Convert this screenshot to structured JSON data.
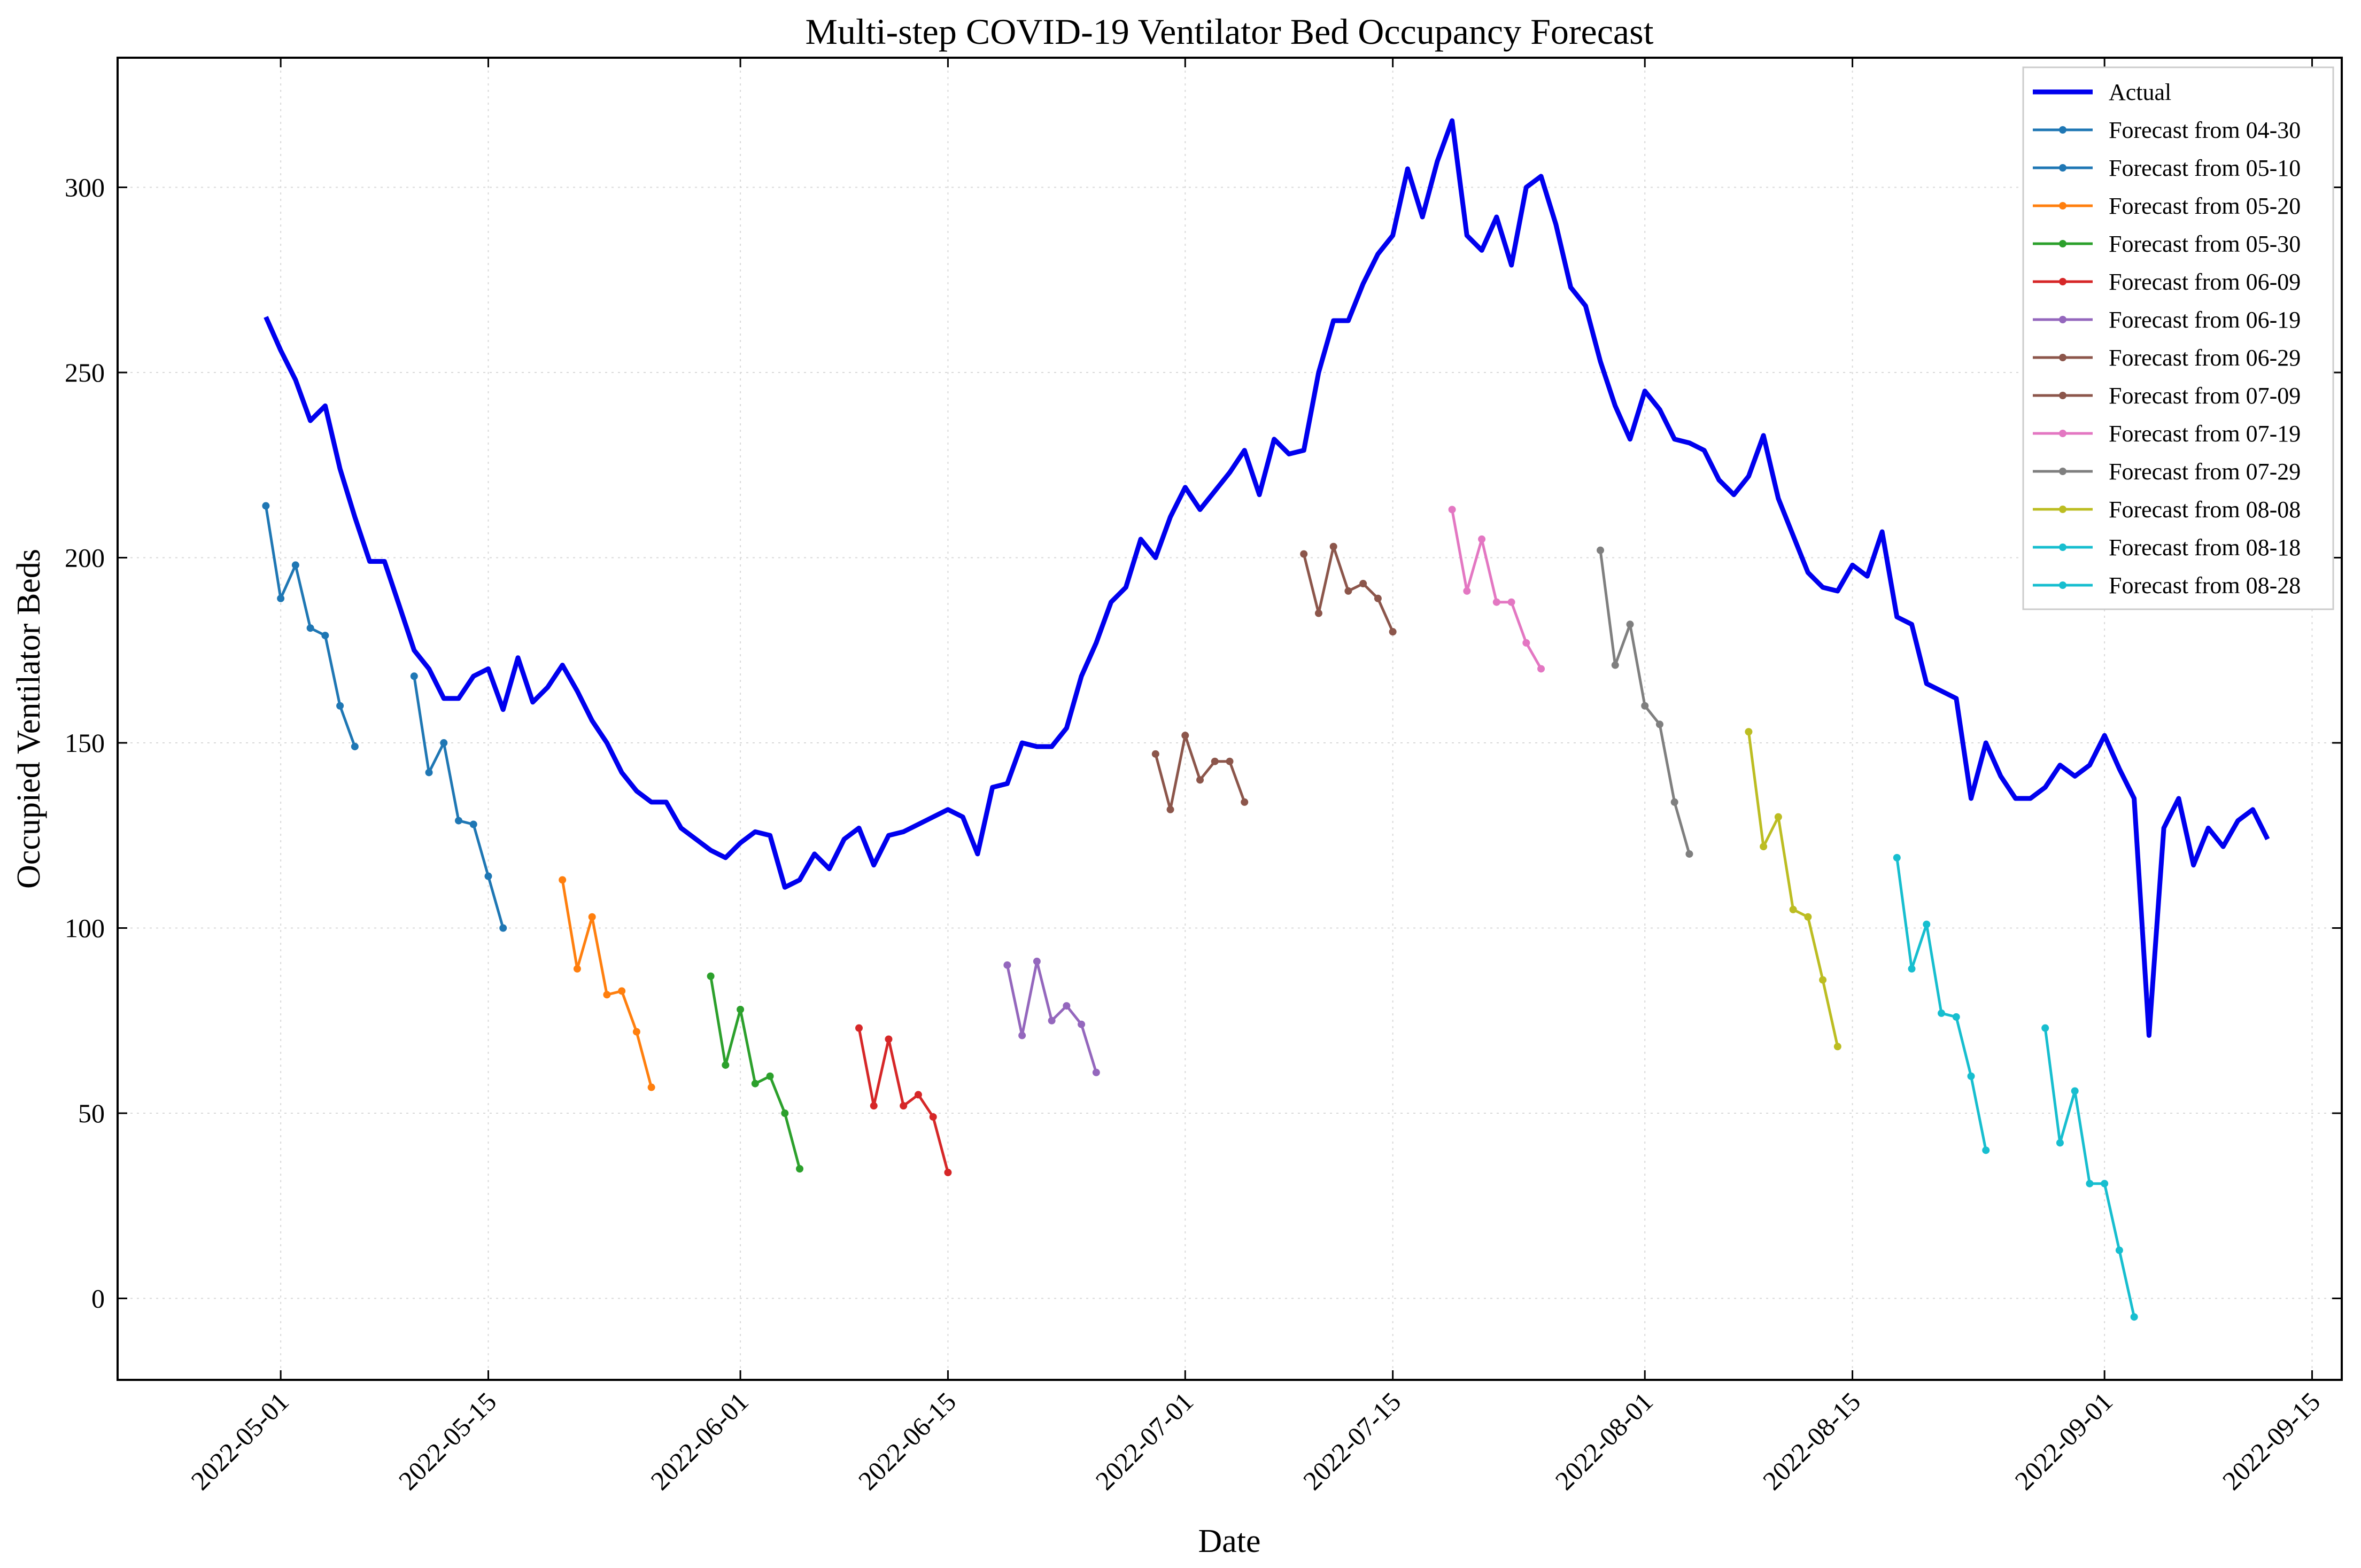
{
  "chart_data": {
    "type": "line",
    "title": "Multi-step COVID-19 Ventilator Bed Occupancy Forecast",
    "xlabel": "Date",
    "ylabel": "Occupied Ventilator Beds",
    "xlim": [
      "2022-04-20",
      "2022-09-17"
    ],
    "ylim": [
      -22,
      335
    ],
    "x_ticks": [
      "2022-05-01",
      "2022-05-15",
      "2022-06-01",
      "2022-06-15",
      "2022-07-01",
      "2022-07-15",
      "2022-08-01",
      "2022-08-15",
      "2022-09-01",
      "2022-09-15"
    ],
    "y_ticks": [
      0,
      50,
      100,
      150,
      200,
      250,
      300
    ],
    "grid": true,
    "legend_position": "top-right",
    "series": [
      {
        "name": "Actual",
        "color": "#0000ee",
        "start": "2022-04-30",
        "values": [
          265,
          256,
          248,
          237,
          241,
          224,
          211,
          199,
          199,
          187,
          175,
          170,
          162,
          162,
          168,
          170,
          159,
          173,
          161,
          165,
          171,
          164,
          156,
          150,
          142,
          137,
          134,
          134,
          127,
          124,
          121,
          119,
          123,
          126,
          125,
          111,
          113,
          120,
          116,
          124,
          127,
          117,
          125,
          126,
          128,
          130,
          132,
          130,
          120,
          138,
          139,
          150,
          149,
          149,
          154,
          168,
          177,
          188,
          192,
          205,
          200,
          211,
          219,
          213,
          218,
          223,
          229,
          217,
          232,
          228,
          229,
          250,
          264,
          264,
          274,
          282,
          287,
          305,
          292,
          307,
          318,
          287,
          283,
          292,
          279,
          300,
          303,
          290,
          273,
          268,
          253,
          241,
          232,
          245,
          240,
          232,
          231,
          229,
          221,
          217,
          222,
          233,
          216,
          206,
          196,
          192,
          191,
          198,
          195,
          207,
          184,
          182,
          166,
          164,
          162,
          135,
          150,
          141,
          135,
          135,
          138,
          144,
          141,
          144,
          152,
          143,
          135,
          71,
          127,
          135,
          117,
          127,
          122,
          129,
          132,
          124
        ]
      },
      {
        "name": "Forecast from 04-30",
        "color": "#1f77b4",
        "start": "2022-04-30",
        "values": [
          214,
          189,
          198,
          181,
          179,
          160,
          149
        ]
      },
      {
        "name": "Forecast from 05-10",
        "color": "#1f77b4",
        "start": "2022-05-10",
        "values": [
          168,
          142,
          150,
          129,
          128,
          114,
          100
        ]
      },
      {
        "name": "Forecast from 05-20",
        "color": "#ff7f0e",
        "start": "2022-05-20",
        "values": [
          113,
          89,
          103,
          82,
          83,
          72,
          57
        ]
      },
      {
        "name": "Forecast from 05-30",
        "color": "#2ca02c",
        "start": "2022-05-30",
        "values": [
          87,
          63,
          78,
          58,
          60,
          50,
          35
        ]
      },
      {
        "name": "Forecast from 06-09",
        "color": "#d62728",
        "start": "2022-06-09",
        "values": [
          73,
          52,
          70,
          52,
          55,
          49,
          34
        ]
      },
      {
        "name": "Forecast from 06-19",
        "color": "#9467bd",
        "start": "2022-06-19",
        "values": [
          90,
          71,
          91,
          75,
          79,
          74,
          61
        ]
      },
      {
        "name": "Forecast from 06-29",
        "color": "#8c564b",
        "start": "2022-06-29",
        "values": [
          147,
          132,
          152,
          140,
          145,
          145,
          134
        ]
      },
      {
        "name": "Forecast from 07-09",
        "color": "#8c564b",
        "start": "2022-07-09",
        "values": [
          201,
          185,
          203,
          191,
          193,
          189,
          180
        ]
      },
      {
        "name": "Forecast from 07-19",
        "color": "#e377c2",
        "start": "2022-07-19",
        "values": [
          213,
          191,
          205,
          188,
          188,
          177,
          170
        ]
      },
      {
        "name": "Forecast from 07-29",
        "color": "#7f7f7f",
        "start": "2022-07-29",
        "values": [
          202,
          171,
          182,
          160,
          155,
          134,
          120
        ]
      },
      {
        "name": "Forecast from 08-08",
        "color": "#bcbd22",
        "start": "2022-08-08",
        "values": [
          153,
          122,
          130,
          105,
          103,
          86,
          68
        ]
      },
      {
        "name": "Forecast from 08-18",
        "color": "#17becf",
        "start": "2022-08-18",
        "values": [
          119,
          89,
          101,
          77,
          76,
          60,
          40
        ]
      },
      {
        "name": "Forecast from 08-28",
        "color": "#17becf",
        "start": "2022-08-28",
        "values": [
          73,
          42,
          56,
          31,
          31,
          13,
          -5
        ]
      }
    ]
  }
}
